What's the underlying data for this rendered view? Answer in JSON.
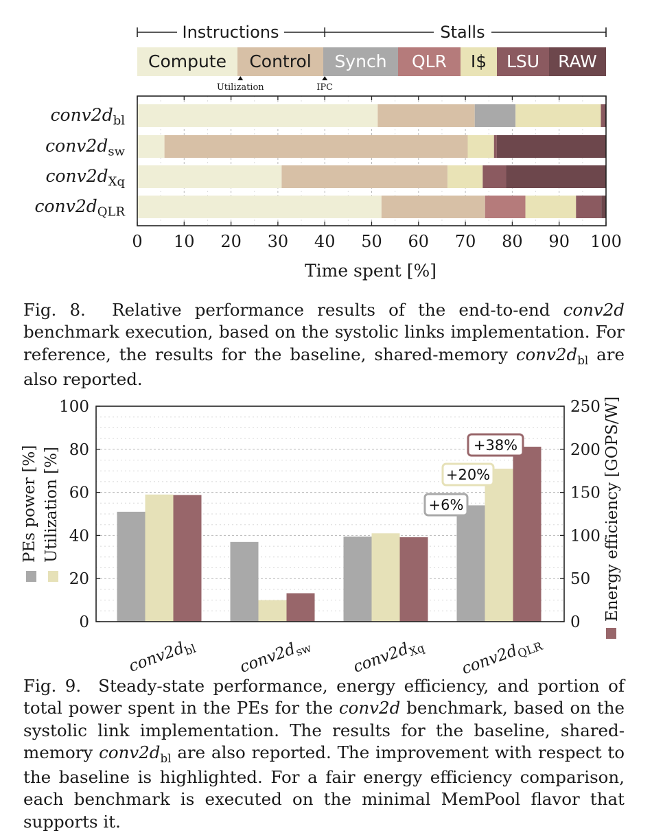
{
  "chart_data": [
    {
      "type": "stacked-bar-horizontal",
      "section_headers": {
        "instructions": "Instructions",
        "stalls": "Stalls"
      },
      "categories": [
        {
          "name": "Compute",
          "color": "#efeed6",
          "text_color": "#1a1a1a"
        },
        {
          "name": "Control",
          "color": "#d7c0a6",
          "text_color": "#1a1a1a"
        },
        {
          "name": "Synch",
          "color": "#a9a9a9",
          "text_color": "#ffffff"
        },
        {
          "name": "QLR",
          "color": "#b57b7b",
          "text_color": "#ffffff"
        },
        {
          "name": "I$",
          "color": "#e9e3b6",
          "text_color": "#1a1a1a"
        },
        {
          "name": "LSU",
          "color": "#8b5a60",
          "text_color": "#ffffff"
        },
        {
          "name": "RAW",
          "color": "#6d474c",
          "text_color": "#ffffff"
        }
      ],
      "markers": [
        {
          "label": "Utilization",
          "value": 22
        },
        {
          "label": "IPC",
          "value": 40
        }
      ],
      "rows": [
        {
          "base": "conv2d",
          "sub": "bl",
          "segments": [
            51.3,
            20.7,
            8.7,
            0,
            18.2,
            0.8,
            0.3
          ]
        },
        {
          "base": "conv2d",
          "sub": "sw",
          "segments": [
            5.8,
            64.7,
            0,
            0,
            5.6,
            0.6,
            23.3
          ]
        },
        {
          "base": "conv2d",
          "sub": "Xq",
          "segments": [
            30.8,
            35.4,
            0,
            0,
            7.5,
            5.0,
            21.3
          ]
        },
        {
          "base": "conv2d",
          "sub": "QLR",
          "segments": [
            52.1,
            22.1,
            0,
            8.6,
            10.8,
            5.4,
            1.0
          ]
        }
      ],
      "xlim": [
        0,
        100
      ],
      "xticks": [
        0,
        10,
        20,
        30,
        40,
        50,
        60,
        70,
        80,
        90,
        100
      ],
      "xlabel": "Time spent [%]"
    },
    {
      "type": "bar",
      "categories": [
        {
          "base": "conv2d",
          "sub": "bl"
        },
        {
          "base": "conv2d",
          "sub": "sw"
        },
        {
          "base": "conv2d",
          "sub": "Xq"
        },
        {
          "base": "conv2d",
          "sub": "QLR"
        }
      ],
      "series": [
        {
          "name": "PEs power [%]",
          "axis": "left",
          "color": "#a9a9a9",
          "values": [
            51,
            37,
            39.5,
            54
          ]
        },
        {
          "name": "Utilization [%]",
          "axis": "left",
          "color": "#e6e1b8",
          "values": [
            59,
            10,
            41,
            71
          ]
        },
        {
          "name": "Energy efficiency [GOPS/W]",
          "axis": "right",
          "color": "#98666a",
          "values": [
            147,
            33,
            98,
            203
          ]
        }
      ],
      "annotations": [
        {
          "text": "+6%",
          "category": 3,
          "series": 0
        },
        {
          "text": "+20%",
          "category": 3,
          "series": 1
        },
        {
          "text": "+38%",
          "category": 3,
          "series": 2
        }
      ],
      "ylim_left": [
        0,
        100
      ],
      "yticks_left": [
        0,
        20,
        40,
        60,
        80,
        100
      ],
      "ylim_right": [
        0,
        250
      ],
      "yticks_right": [
        0,
        50,
        100,
        150,
        200,
        250
      ],
      "ylabel_left": [
        "PEs power [%]",
        "Utilization [%]"
      ],
      "ylabel_right": "Energy efficiency [GOPS/W]"
    }
  ],
  "captions": {
    "fig8": {
      "label": "Fig. 8.",
      "t1": "Relative performance results of the end-to-end ",
      "i1": "conv2d",
      "t2": " benchmark execution, based on the systolic links implementation. For reference, the results for the baseline, shared-memory ",
      "i2": "conv2d",
      "s2": "bl",
      "t3": " are also reported."
    },
    "fig9": {
      "label": "Fig. 9.",
      "t1": "Steady-state performance, energy efficiency, and portion of total power spent in the PEs for the ",
      "i1": "conv2d",
      "t2": " benchmark, based on the systolic link implementation. The results for the baseline, shared-memory ",
      "i2": "conv2d",
      "s2": "bl",
      "t3": " are also reported. The improvement with respect to the baseline is highlighted. For a fair energy efficiency comparison, each benchmark is executed on the minimal MemPool flavor that supports it."
    }
  }
}
